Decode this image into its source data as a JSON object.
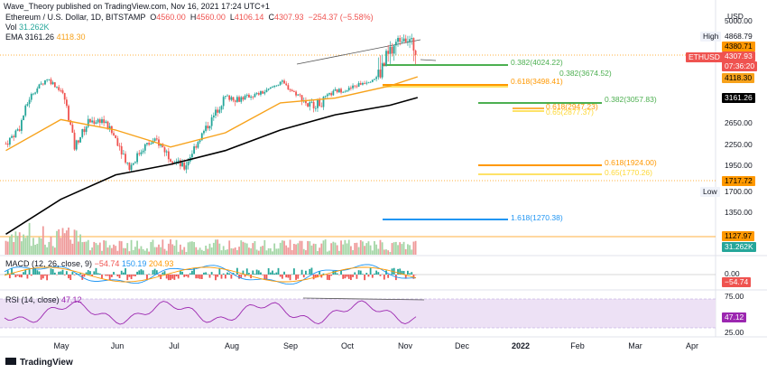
{
  "header": {
    "publisher": "Wave_Theory published on TradingView.com, Nov 16, 2021 17:24 UTC+1"
  },
  "legend": {
    "symbol": "Ethereum / U.S. Dollar, 1D, BITSTAMP",
    "open_label": "O",
    "open": "4560.00",
    "high_label": "H",
    "high": "4560.00",
    "low_label": "L",
    "low": "4106.14",
    "close_label": "C",
    "close": "4307.93",
    "change": "−254.37 (−5.58%)",
    "vol_label": "Vol",
    "vol": "31.262K",
    "ema_label": "EMA",
    "ema_len": "3161.26",
    "ema_val": "4118.30"
  },
  "price_axis": {
    "currency": "USD",
    "ticks": [
      "5000.00",
      "4868.79",
      "4380.71",
      "4307.93",
      "07:36:20",
      "4118.30",
      "3161.26",
      "2650.00",
      "2250.00",
      "1950.00",
      "1717.72",
      "1700.00",
      "1350.00",
      "1127.97",
      "31.262K"
    ],
    "high_word": "High",
    "low_word": "Low",
    "symbol_tag": "ETHUSD"
  },
  "fib_labels": [
    {
      "text": "0.382(4024.22)",
      "color": "#4caf50"
    },
    {
      "text": "0.382(3674.52)",
      "color": "#4caf50"
    },
    {
      "text": "0.618(3498.41)",
      "color": "#ff9800"
    },
    {
      "text": "0.382(3057.83)",
      "color": "#4caf50"
    },
    {
      "text": "0.618(2947.23)",
      "color": "#ff9800"
    },
    {
      "text": "0.65(2877.37)",
      "color": "#fdd835"
    },
    {
      "text": "0.618(1924.00)",
      "color": "#ff9800"
    },
    {
      "text": "0.65(1770.26)",
      "color": "#fdd835"
    },
    {
      "text": "1.618(1270.38)",
      "color": "#2196f3"
    }
  ],
  "macd": {
    "label": "MACD (12, 26, close, 9)",
    "hist": "−54.74",
    "macd": "150.19",
    "signal": "204.93",
    "axis_zero": "0.00",
    "axis_tag": "−54.74"
  },
  "rsi": {
    "label": "RSI (14, close)",
    "value": "47.12",
    "axis_top": "75.00",
    "axis_bottom": "25.00",
    "axis_tag": "47.12"
  },
  "time_axis": {
    "months": [
      "May",
      "Jun",
      "Jul",
      "Aug",
      "Sep",
      "Oct",
      "Nov",
      "Dec",
      "2022",
      "Feb",
      "Mar",
      "Apr"
    ]
  },
  "footer": {
    "brand": "TradingView"
  },
  "colors": {
    "up": "#26a69a",
    "down": "#ef5350",
    "ema": "#f7a21b",
    "ema200": "#000000",
    "fib_green": "#4caf50",
    "fib_orange": "#ff9800",
    "fib_yellow": "#fdd835",
    "fib_blue": "#2196f3",
    "rsi_band": "#ede1f5",
    "rsi_line": "#9c27b0"
  },
  "chart_data": {
    "type": "candlestick",
    "title": "Ethereum / U.S. Dollar, 1D, BITSTAMP",
    "x_range": [
      "2021-04-15",
      "2022-04-15"
    ],
    "ylim": [
      1000,
      5000
    ],
    "resistance_level": 4380.71,
    "support_level": 1717.72,
    "fib_levels": [
      4024.22,
      3674.52,
      3498.41,
      3057.83,
      2947.23,
      2877.37,
      1924.0,
      1770.26,
      1270.38
    ],
    "weekly_closes": {
      "x": [
        "2021-04-18",
        "2021-04-25",
        "2021-05-02",
        "2021-05-09",
        "2021-05-16",
        "2021-05-23",
        "2021-05-30",
        "2021-06-06",
        "2021-06-13",
        "2021-06-20",
        "2021-06-27",
        "2021-07-04",
        "2021-07-11",
        "2021-07-18",
        "2021-07-25",
        "2021-08-01",
        "2021-08-08",
        "2021-08-15",
        "2021-08-22",
        "2021-08-29",
        "2021-09-05",
        "2021-09-12",
        "2021-09-19",
        "2021-09-26",
        "2021-10-03",
        "2021-10-10",
        "2021-10-17",
        "2021-10-24",
        "2021-10-31",
        "2021-11-07",
        "2021-11-14"
      ],
      "y": [
        2250,
        2550,
        3400,
        4050,
        3500,
        2200,
        2650,
        2700,
        2350,
        1900,
        2200,
        2300,
        2050,
        1900,
        2300,
        2700,
        3200,
        3150,
        3250,
        3450,
        3900,
        3400,
        3000,
        3050,
        3450,
        3550,
        3850,
        4100,
        4300,
        4650,
        4307.93
      ]
    },
    "ema_50": {
      "x": [
        "2021-04-18",
        "2021-05-16",
        "2021-06-13",
        "2021-07-11",
        "2021-08-08",
        "2021-09-05",
        "2021-10-03",
        "2021-10-31",
        "2021-11-14"
      ],
      "y": [
        2150,
        2700,
        2500,
        2200,
        2450,
        3050,
        3150,
        3700,
        4118.3
      ]
    },
    "ema_200": {
      "x": [
        "2021-04-18",
        "2021-05-16",
        "2021-06-13",
        "2021-07-11",
        "2021-08-08",
        "2021-09-05",
        "2021-10-03",
        "2021-10-31",
        "2021-11-14"
      ],
      "y": [
        1150,
        1500,
        1800,
        1950,
        2150,
        2500,
        2800,
        3000,
        3161.26
      ]
    }
  }
}
